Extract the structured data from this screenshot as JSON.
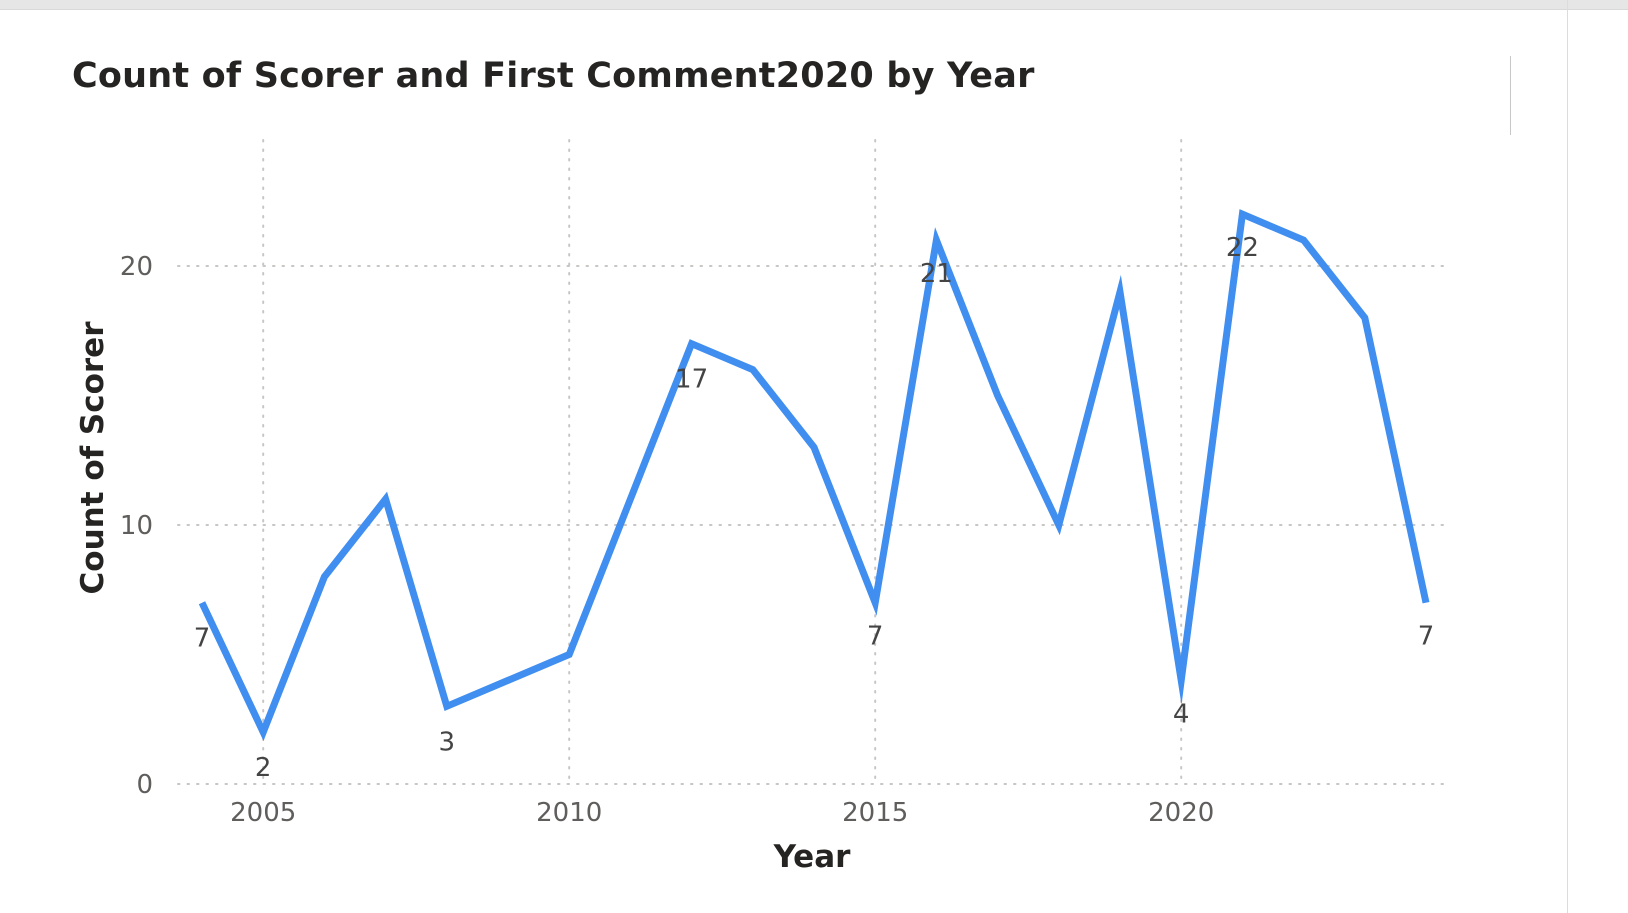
{
  "chart_data": {
    "type": "line",
    "title": "Count of Scorer and First Comment2020 by Year",
    "xlabel": "Year",
    "ylabel": "Count of Scorer",
    "x": [
      2004,
      2005,
      2006,
      2007,
      2008,
      2009,
      2010,
      2011,
      2012,
      2013,
      2014,
      2015,
      2016,
      2017,
      2018,
      2019,
      2020,
      2021,
      2022,
      2023,
      2024
    ],
    "series": [
      {
        "values": [
          7,
          2,
          8,
          11,
          3,
          4,
          5,
          11,
          17,
          16,
          13,
          7,
          21,
          15,
          10,
          19,
          4,
          22,
          21,
          18,
          7
        ],
        "color": "#3f8ef0"
      }
    ],
    "x_ticks": [
      "2005",
      "2010",
      "2015",
      "2020"
    ],
    "y_ticks": [
      "0",
      "10",
      "20"
    ],
    "xlim": [
      2004,
      2024
    ],
    "ylim": [
      0,
      22
    ],
    "data_labels": [
      {
        "year": 2004,
        "text": "7"
      },
      {
        "year": 2005,
        "text": "2"
      },
      {
        "year": 2008,
        "text": "3"
      },
      {
        "year": 2012,
        "text": "17"
      },
      {
        "year": 2015,
        "text": "7"
      },
      {
        "year": 2016,
        "text": "21"
      },
      {
        "year": 2020,
        "text": "4"
      },
      {
        "year": 2021,
        "text": "22"
      },
      {
        "year": 2024,
        "text": "7"
      }
    ],
    "grid": true,
    "legend": "none"
  }
}
